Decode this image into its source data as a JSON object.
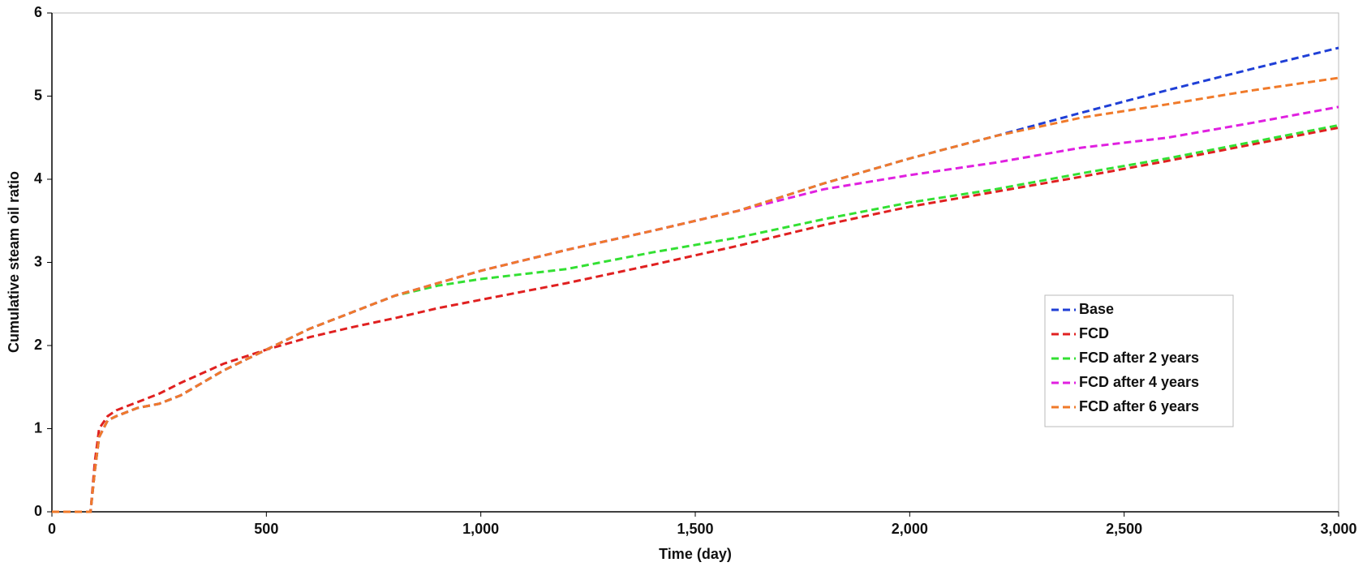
{
  "chart_data": {
    "type": "line",
    "x_label": "Time (day)",
    "y_label": "Cumulative steam oil ratio",
    "x": [
      0,
      80,
      90,
      100,
      110,
      130,
      150,
      200,
      250,
      300,
      400,
      500,
      600,
      700,
      800,
      900,
      1000,
      1200,
      1400,
      1600,
      1800,
      2000,
      2200,
      2400,
      2600,
      2800,
      3000
    ],
    "series": [
      {
        "name": "Base",
        "color": "#1f3fd6",
        "values": [
          0,
          0,
          0,
          0.5,
          0.9,
          1.1,
          1.15,
          1.25,
          1.3,
          1.4,
          1.7,
          1.95,
          2.2,
          2.4,
          2.6,
          2.75,
          2.9,
          3.15,
          3.38,
          3.62,
          3.95,
          4.25,
          4.52,
          4.8,
          5.07,
          5.33,
          5.58
        ]
      },
      {
        "name": "FCD",
        "color": "#e02020",
        "values": [
          0,
          0,
          0,
          0.6,
          1.0,
          1.15,
          1.22,
          1.32,
          1.42,
          1.55,
          1.78,
          1.95,
          2.1,
          2.22,
          2.33,
          2.45,
          2.55,
          2.75,
          2.97,
          3.2,
          3.45,
          3.67,
          3.85,
          4.03,
          4.22,
          4.42,
          4.62
        ]
      },
      {
        "name": "FCD after 2 years",
        "color": "#33e033",
        "values": [
          0,
          0,
          0,
          0.5,
          0.9,
          1.1,
          1.15,
          1.25,
          1.3,
          1.4,
          1.7,
          1.95,
          2.2,
          2.4,
          2.6,
          2.72,
          2.8,
          2.92,
          3.12,
          3.3,
          3.52,
          3.72,
          3.88,
          4.07,
          4.25,
          4.45,
          4.65
        ]
      },
      {
        "name": "FCD after 4 years",
        "color": "#e020e0",
        "values": [
          0,
          0,
          0,
          0.5,
          0.9,
          1.1,
          1.15,
          1.25,
          1.3,
          1.4,
          1.7,
          1.95,
          2.2,
          2.4,
          2.6,
          2.75,
          2.9,
          3.15,
          3.38,
          3.62,
          3.88,
          4.05,
          4.2,
          4.38,
          4.5,
          4.68,
          4.87
        ]
      },
      {
        "name": "FCD after 6 years",
        "color": "#f07a2a",
        "values": [
          0,
          0,
          0,
          0.5,
          0.9,
          1.1,
          1.15,
          1.25,
          1.3,
          1.4,
          1.7,
          1.95,
          2.2,
          2.4,
          2.6,
          2.75,
          2.9,
          3.15,
          3.38,
          3.62,
          3.95,
          4.25,
          4.52,
          4.74,
          4.9,
          5.07,
          5.22
        ]
      }
    ],
    "xlim": [
      0,
      3000
    ],
    "xticks": [
      0,
      500,
      {
        "value": 1000,
        "label": "1,000"
      },
      {
        "value": 1500,
        "label": "1,500"
      },
      {
        "value": 2000,
        "label": "2,000"
      },
      {
        "value": 2500,
        "label": "2,500"
      },
      {
        "value": 3000,
        "label": "3,000"
      }
    ],
    "ylim": [
      0,
      6
    ],
    "yticks": [
      0,
      1,
      2,
      3,
      4,
      5,
      6
    ],
    "grid": false,
    "legend": "right"
  }
}
